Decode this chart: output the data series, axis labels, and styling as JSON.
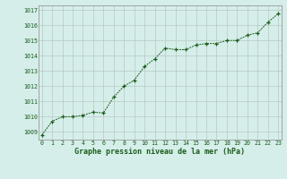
{
  "x": [
    0,
    1,
    2,
    3,
    4,
    5,
    6,
    7,
    8,
    9,
    10,
    11,
    12,
    13,
    14,
    15,
    16,
    17,
    18,
    19,
    20,
    21,
    22,
    23
  ],
  "y": [
    1008.8,
    1009.7,
    1010.0,
    1010.0,
    1010.1,
    1010.3,
    1010.25,
    1011.3,
    1012.0,
    1012.4,
    1013.3,
    1013.8,
    1014.5,
    1014.4,
    1014.4,
    1014.7,
    1014.8,
    1014.8,
    1015.0,
    1015.0,
    1015.35,
    1015.5,
    1016.2,
    1016.75
  ],
  "ylim": [
    1008.5,
    1017.3
  ],
  "yticks": [
    1009,
    1010,
    1011,
    1012,
    1013,
    1014,
    1015,
    1016,
    1017
  ],
  "xticks": [
    0,
    1,
    2,
    3,
    4,
    5,
    6,
    7,
    8,
    9,
    10,
    11,
    12,
    13,
    14,
    15,
    16,
    17,
    18,
    19,
    20,
    21,
    22,
    23
  ],
  "xlabel": "Graphe pression niveau de la mer (hPa)",
  "line_color": "#1a5c1a",
  "marker": "P",
  "marker_size": 2.5,
  "bg_color": "#d5eeea",
  "grid_color": "#b8c8c4",
  "tick_color": "#1a5c1a",
  "label_color": "#1a5c1a",
  "border_color": "#999999",
  "xlim_left": -0.3,
  "xlim_right": 23.3
}
